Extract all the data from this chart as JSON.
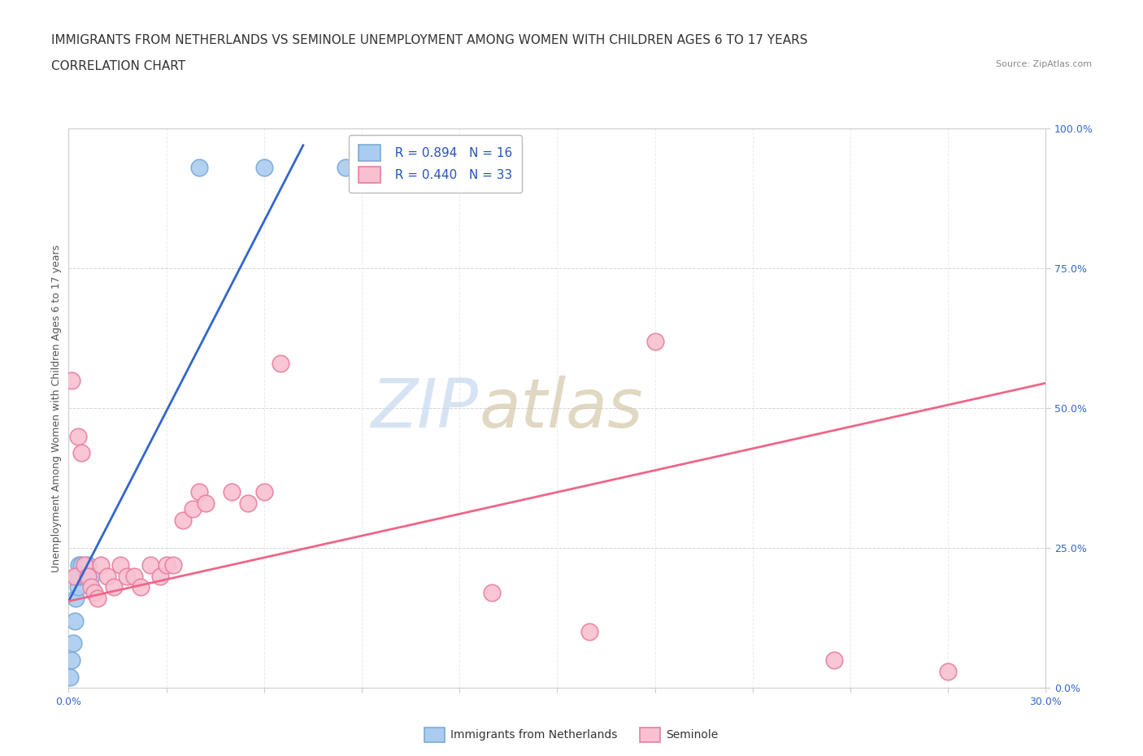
{
  "title_line1": "IMMIGRANTS FROM NETHERLANDS VS SEMINOLE UNEMPLOYMENT AMONG WOMEN WITH CHILDREN AGES 6 TO 17 YEARS",
  "title_line2": "CORRELATION CHART",
  "source_text": "Source: ZipAtlas.com",
  "ylabel": "Unemployment Among Women with Children Ages 6 to 17 years",
  "xlim": [
    0.0,
    0.3
  ],
  "ylim": [
    0.0,
    1.0
  ],
  "xticks": [
    0.0,
    0.03,
    0.06,
    0.09,
    0.12,
    0.15,
    0.18,
    0.21,
    0.24,
    0.27,
    0.3
  ],
  "yticks": [
    0.0,
    0.25,
    0.5,
    0.75,
    1.0
  ],
  "yticklabels": [
    "0.0%",
    "25.0%",
    "50.0%",
    "75.0%",
    "100.0%"
  ],
  "blue_color": "#aaccf0",
  "blue_edge": "#7aaad8",
  "pink_color": "#f8c0d0",
  "pink_edge": "#e880a0",
  "blue_line_color": "#3366cc",
  "pink_line_color": "#ee6688",
  "grid_color": "#cccccc",
  "background_color": "#ffffff",
  "legend_R1": "R = 0.894",
  "legend_N1": "N = 16",
  "legend_R2": "R = 0.440",
  "legend_N2": "N = 33",
  "blue_scatter_x": [
    0.0005,
    0.001,
    0.0015,
    0.0018,
    0.0022,
    0.0025,
    0.0028,
    0.0032,
    0.0035,
    0.004,
    0.005,
    0.006,
    0.007,
    0.04,
    0.06,
    0.085
  ],
  "blue_scatter_y": [
    0.02,
    0.05,
    0.08,
    0.12,
    0.16,
    0.2,
    0.18,
    0.22,
    0.2,
    0.22,
    0.2,
    0.22,
    0.2,
    0.93,
    0.93,
    0.93
  ],
  "pink_scatter_x": [
    0.001,
    0.002,
    0.003,
    0.004,
    0.005,
    0.006,
    0.007,
    0.008,
    0.009,
    0.01,
    0.012,
    0.014,
    0.016,
    0.018,
    0.02,
    0.022,
    0.025,
    0.028,
    0.03,
    0.032,
    0.035,
    0.038,
    0.04,
    0.042,
    0.05,
    0.055,
    0.06,
    0.065,
    0.13,
    0.16,
    0.18,
    0.235,
    0.27
  ],
  "pink_scatter_y": [
    0.55,
    0.2,
    0.45,
    0.42,
    0.22,
    0.2,
    0.18,
    0.17,
    0.16,
    0.22,
    0.2,
    0.18,
    0.22,
    0.2,
    0.2,
    0.18,
    0.22,
    0.2,
    0.22,
    0.22,
    0.3,
    0.32,
    0.35,
    0.33,
    0.35,
    0.33,
    0.35,
    0.58,
    0.17,
    0.1,
    0.62,
    0.05,
    0.03
  ],
  "blue_trend_x": [
    0.0,
    0.072
  ],
  "blue_trend_y": [
    0.155,
    0.97
  ],
  "pink_trend_x": [
    0.0,
    0.3
  ],
  "pink_trend_y": [
    0.155,
    0.545
  ],
  "title_fontsize": 11,
  "subtitle_fontsize": 11,
  "axis_label_fontsize": 9,
  "tick_fontsize": 9,
  "legend_fontsize": 11
}
